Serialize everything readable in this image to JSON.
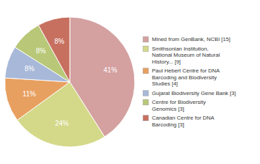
{
  "chart_data": {
    "type": "pie",
    "categories": [
      "Mined from GenBank, NCBI [15]",
      "Smithsonian Institution,\nNational Museum of Natural\nHistory... [9]",
      "Paul Hebert Centre for DNA\nBarcoding and Biodiversity\nStudies [4]",
      "Gujarat Biodiversity Gene Bank [3]",
      "Centre for Biodiversity\nGenomics [3]",
      "Canadian Centre for DNA\nBarcoding [3]"
    ],
    "values": [
      41,
      24,
      11,
      8,
      8,
      8
    ],
    "value_labels": [
      "41%",
      "24%",
      "11%",
      "8%",
      "8%",
      "8%"
    ],
    "colors": [
      "#d4a0a0",
      "#d4d98a",
      "#e8a060",
      "#a8b8d8",
      "#b8c878",
      "#c87060"
    ],
    "data_labels": true,
    "legend": "right"
  }
}
